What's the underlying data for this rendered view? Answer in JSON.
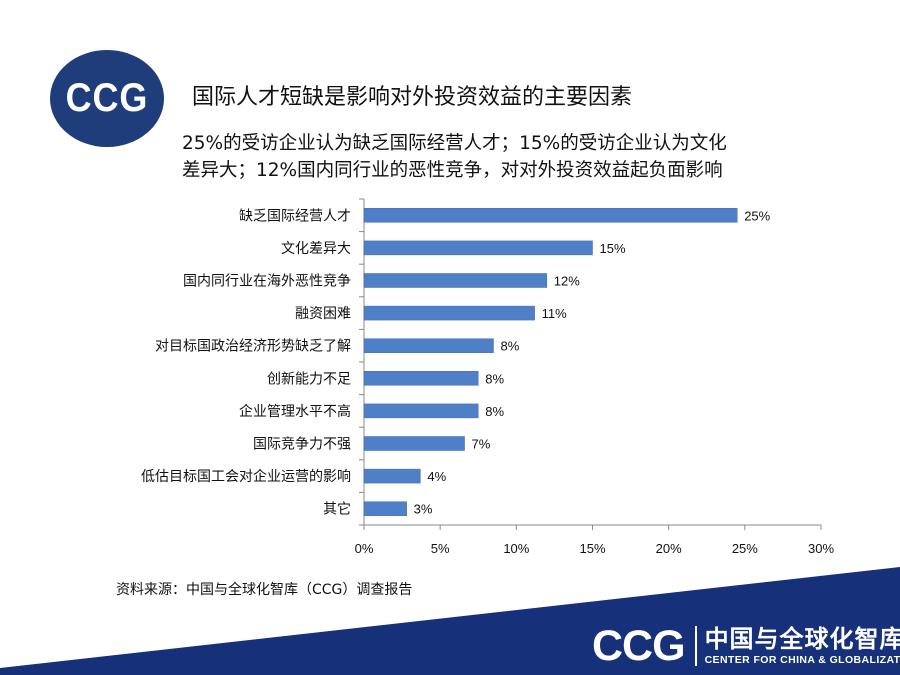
{
  "logo": {
    "text": "CCG"
  },
  "title": "国际人才短缺是影响对外投资效益的主要因素",
  "subtitle_lines": [
    "25%的受访企业认为缺乏国际经营人才；15%的受访企业认为文化",
    "差异大；12%国内同行业的恶性竞争，对对外投资效益起负面影响"
  ],
  "chart_data": {
    "type": "bar",
    "orientation": "horizontal",
    "categories": [
      "缺乏国际经营人才",
      "文化差异大",
      "国内同行业在海外恶性竞争",
      "融资困难",
      "对目标国政治经济形势缺乏了解",
      "创新能力不足",
      "企业管理水平不高",
      "国际竞争力不强",
      "低估目标国工会对企业运营的影响",
      "其它"
    ],
    "values": [
      24.5,
      15,
      12,
      11.2,
      8.5,
      7.5,
      7.5,
      6.6,
      3.7,
      2.8
    ],
    "value_labels": [
      "25%",
      "15%",
      "12%",
      "11%",
      "8%",
      "8%",
      "8%",
      "7%",
      "4%",
      "3%"
    ],
    "xlim": [
      0,
      30
    ],
    "xticks": [
      0,
      5,
      10,
      15,
      20,
      25,
      30
    ],
    "xtick_labels": [
      "0%",
      "5%",
      "10%",
      "15%",
      "20%",
      "25%",
      "30%"
    ],
    "bar_color": "#4f7fc7",
    "grid": false,
    "legend": "none"
  },
  "source": "资料来源：中国与全球化智库（CCG）调查报告",
  "footer": {
    "band_color": "#16307a",
    "logo_text": "CCG",
    "org_cn": "中国与全球化智库",
    "org_en": "CENTER FOR CHINA & GLOBALIZATION"
  }
}
